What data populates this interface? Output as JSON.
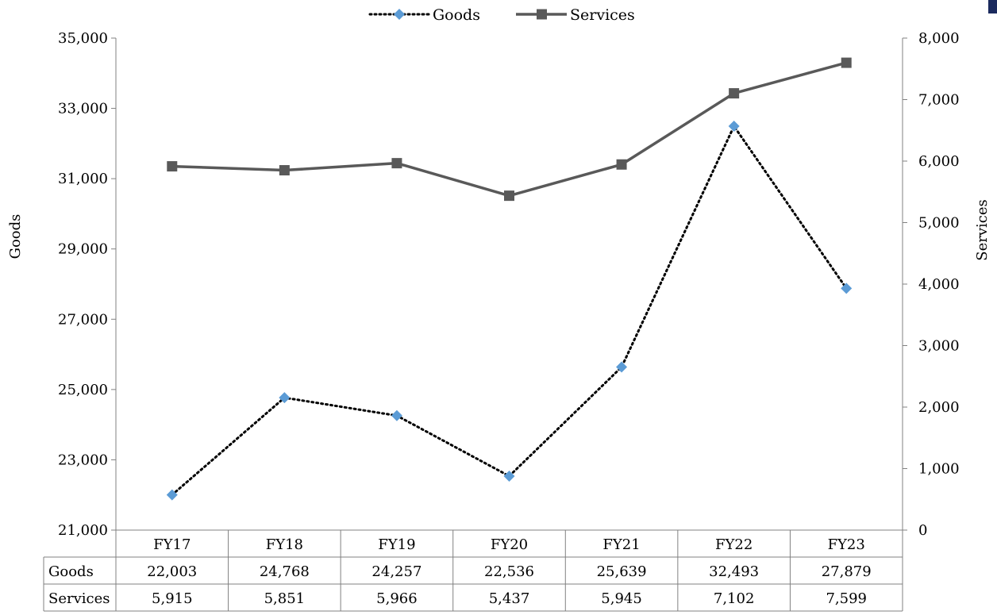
{
  "chart_data": {
    "type": "line",
    "categories": [
      "FY17",
      "FY18",
      "FY19",
      "FY20",
      "FY21",
      "FY22",
      "FY23"
    ],
    "series": [
      {
        "name": "Goods",
        "axis": "left",
        "style": "dotted",
        "marker": "diamond",
        "color": "#5b9bd5",
        "values": [
          22003,
          24768,
          24257,
          22536,
          25639,
          32493,
          27879
        ],
        "labels": [
          "22,003",
          "24,768",
          "24,257",
          "22,536",
          "25,639",
          "32,493",
          "27,879"
        ]
      },
      {
        "name": "Services",
        "axis": "right",
        "style": "solid",
        "marker": "square",
        "color": "#595959",
        "values": [
          5915,
          5851,
          5966,
          5437,
          5945,
          7102,
          7599
        ],
        "labels": [
          "5,915",
          "5,851",
          "5,966",
          "5,437",
          "5,945",
          "7,102",
          "7,599"
        ]
      }
    ],
    "ylabel_left": "Goods",
    "ylabel_right": "Services",
    "ylim_left": [
      21000,
      35000
    ],
    "ylim_right": [
      0,
      8000
    ],
    "yticks_left": [
      21000,
      23000,
      25000,
      27000,
      29000,
      31000,
      33000,
      35000
    ],
    "yticks_left_labels": [
      "21,000",
      "23,000",
      "25,000",
      "27,000",
      "29,000",
      "31,000",
      "33,000",
      "35,000"
    ],
    "yticks_right": [
      0,
      1000,
      2000,
      3000,
      4000,
      5000,
      6000,
      7000,
      8000
    ],
    "yticks_right_labels": [
      "0",
      "1,000",
      "2,000",
      "3,000",
      "4,000",
      "5,000",
      "6,000",
      "7,000",
      "8,000"
    ],
    "legend": "top-center",
    "grid": false,
    "data_table": true
  }
}
